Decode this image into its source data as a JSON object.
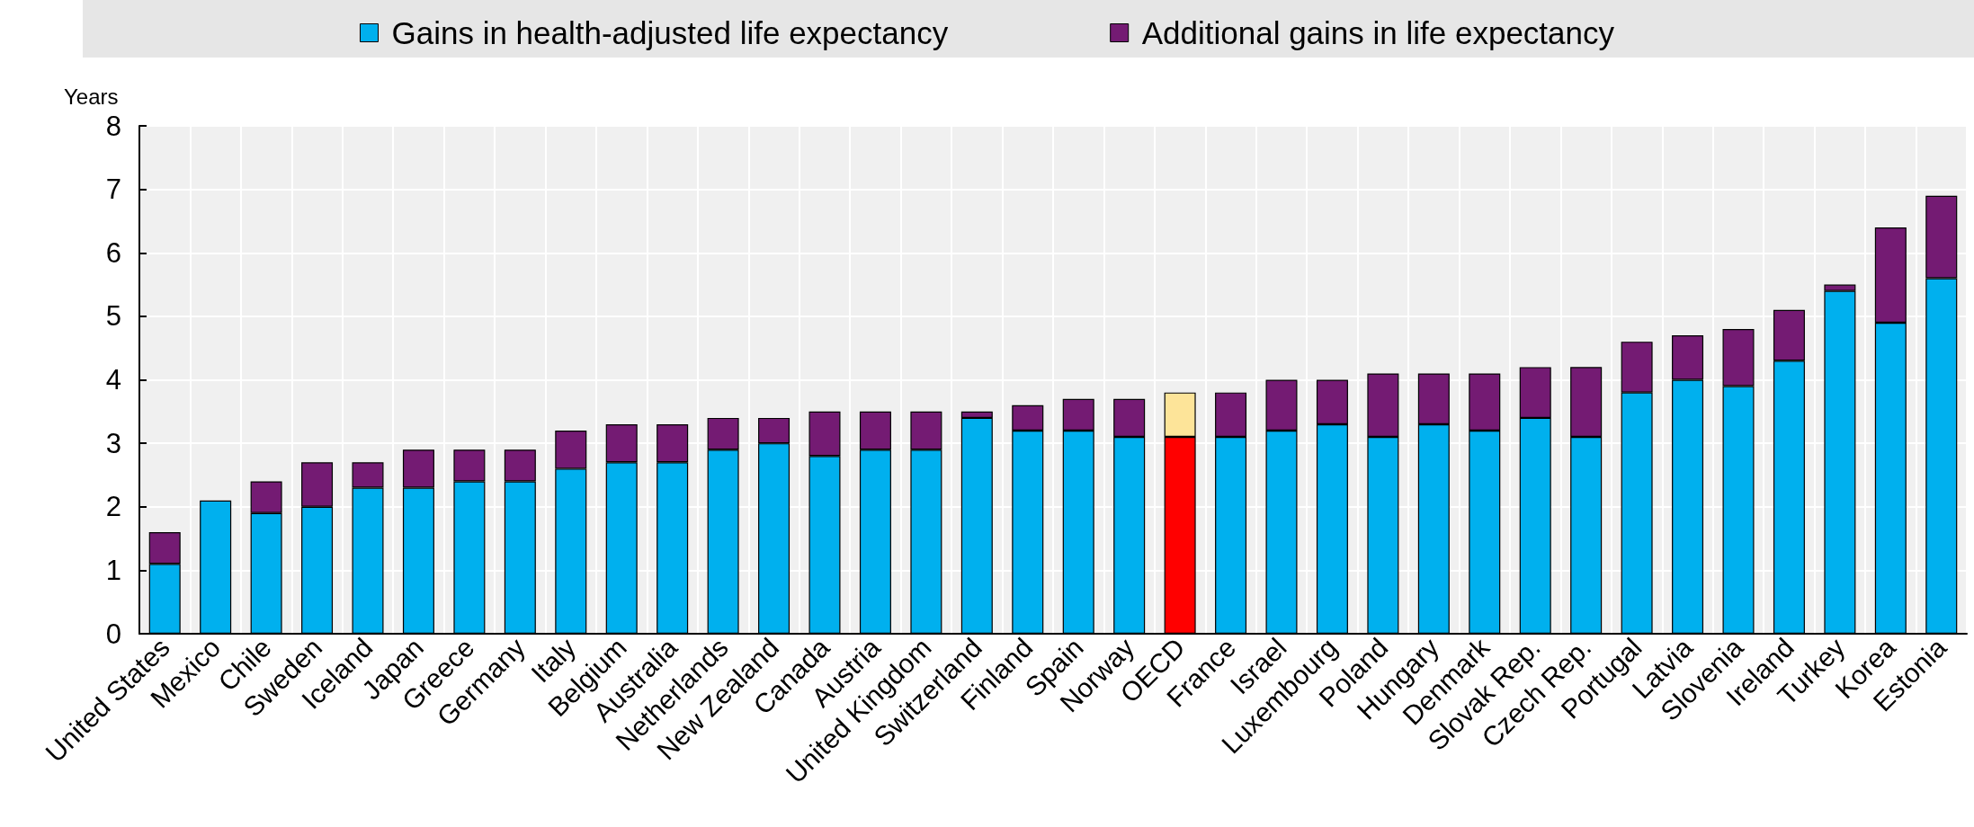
{
  "chart_data": {
    "type": "bar",
    "stacked": true,
    "ylabel": "Years",
    "ylim": [
      0,
      8
    ],
    "yticks": [
      0,
      1,
      2,
      3,
      4,
      5,
      6,
      7,
      8
    ],
    "grid": true,
    "legend": "top",
    "categories": [
      "United States",
      "Mexico",
      "Chile",
      "Sweden",
      "Iceland",
      "Japan",
      "Greece",
      "Germany",
      "Italy",
      "Belgium",
      "Australia",
      "Netherlands",
      "New Zealand",
      "Canada",
      "Austria",
      "United Kingdom",
      "Switzerland",
      "Finland",
      "Spain",
      "Norway",
      "OECD",
      "France",
      "Israel",
      "Luxembourg",
      "Poland",
      "Hungary",
      "Denmark",
      "Slovak Rep.",
      "Czech Rep.",
      "Portugal",
      "Latvia",
      "Slovenia",
      "Ireland",
      "Turkey",
      "Korea",
      "Estonia"
    ],
    "series": [
      {
        "name": "Gains in health-adjusted life expectancy",
        "color": "#00b0ee",
        "colors": [
          "#00b0ee",
          "#00b0ee",
          "#00b0ee",
          "#00b0ee",
          "#00b0ee",
          "#00b0ee",
          "#00b0ee",
          "#00b0ee",
          "#00b0ee",
          "#00b0ee",
          "#00b0ee",
          "#00b0ee",
          "#00b0ee",
          "#00b0ee",
          "#00b0ee",
          "#00b0ee",
          "#00b0ee",
          "#00b0ee",
          "#00b0ee",
          "#00b0ee",
          "#ff0000",
          "#00b0ee",
          "#00b0ee",
          "#00b0ee",
          "#00b0ee",
          "#00b0ee",
          "#00b0ee",
          "#00b0ee",
          "#00b0ee",
          "#00b0ee",
          "#00b0ee",
          "#00b0ee",
          "#00b0ee",
          "#00b0ee",
          "#00b0ee",
          "#00b0ee"
        ],
        "values": [
          1.1,
          2.1,
          1.9,
          2.0,
          2.3,
          2.3,
          2.4,
          2.4,
          2.6,
          2.7,
          2.7,
          2.9,
          3.0,
          2.8,
          2.9,
          2.9,
          3.4,
          3.2,
          3.2,
          3.1,
          3.1,
          3.1,
          3.2,
          3.3,
          3.1,
          3.3,
          3.2,
          3.4,
          3.1,
          3.8,
          4.0,
          3.9,
          4.3,
          5.4,
          4.9,
          5.6
        ]
      },
      {
        "name": "Additional gains in life expectancy",
        "color": "#741b73",
        "colors": [
          "#741b73",
          null,
          "#741b73",
          "#741b73",
          "#741b73",
          "#741b73",
          "#741b73",
          "#741b73",
          "#741b73",
          "#741b73",
          "#741b73",
          "#741b73",
          "#741b73",
          "#741b73",
          "#741b73",
          "#741b73",
          "#741b73",
          "#741b73",
          "#741b73",
          "#741b73",
          "#fde499",
          "#741b73",
          "#741b73",
          "#741b73",
          "#741b73",
          "#741b73",
          "#741b73",
          "#741b73",
          "#741b73",
          "#741b73",
          "#741b73",
          "#741b73",
          "#741b73",
          "#741b73",
          "#741b73",
          "#741b73"
        ],
        "values": [
          0.5,
          null,
          0.5,
          0.7,
          0.4,
          0.6,
          0.5,
          0.5,
          0.6,
          0.6,
          0.6,
          0.5,
          0.4,
          0.7,
          0.6,
          0.6,
          0.1,
          0.4,
          0.5,
          0.6,
          0.7,
          0.7,
          0.8,
          0.7,
          1.0,
          0.8,
          0.9,
          0.8,
          1.1,
          0.8,
          0.7,
          0.9,
          0.8,
          0.1,
          1.5,
          1.3
        ]
      }
    ]
  }
}
